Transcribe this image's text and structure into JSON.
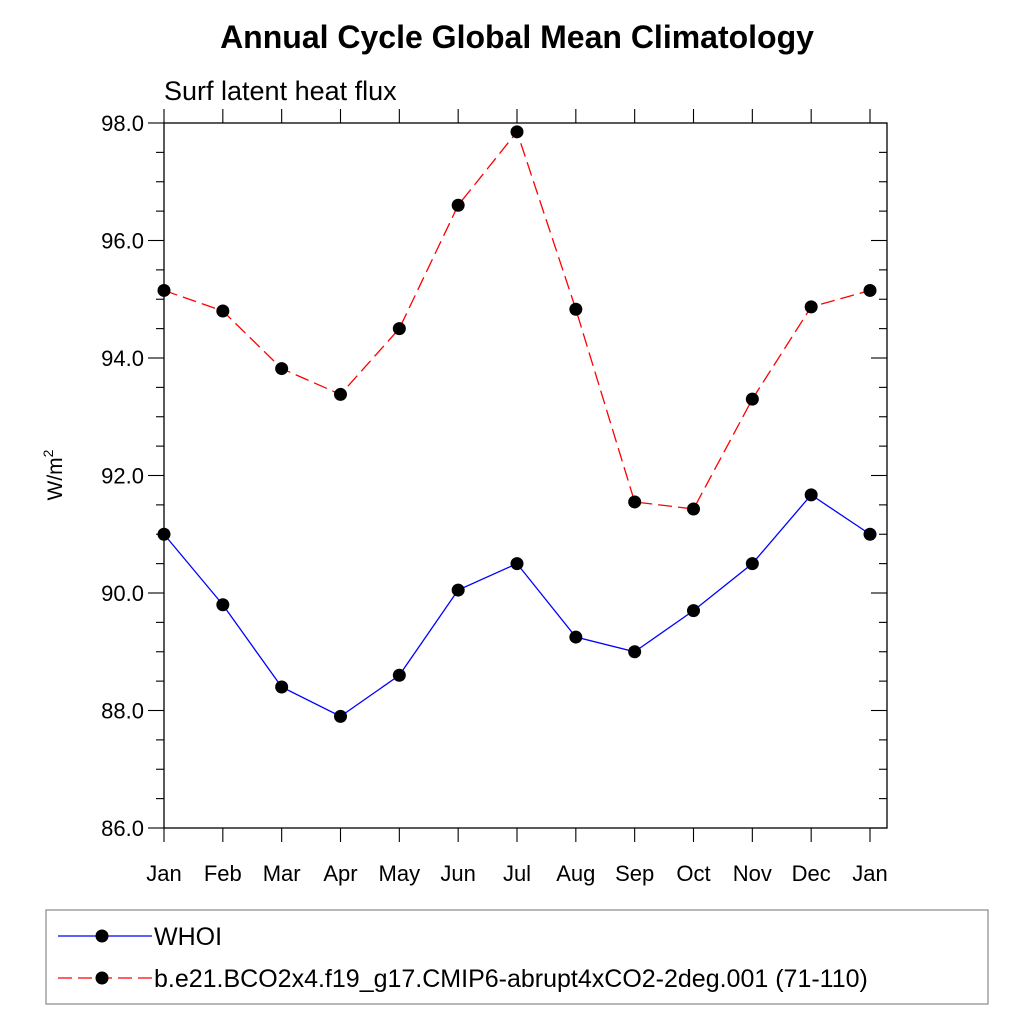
{
  "chart_data": {
    "type": "line",
    "title": "Annual Cycle Global Mean Climatology",
    "subtitle": "Surf latent heat flux",
    "xlabel": "",
    "ylabel": "W/m",
    "ylabel_superscript": "2",
    "categories": [
      "Jan",
      "Feb",
      "Mar",
      "Apr",
      "May",
      "Jun",
      "Jul",
      "Aug",
      "Sep",
      "Oct",
      "Nov",
      "Dec",
      "Jan"
    ],
    "ylim": [
      86.0,
      98.0
    ],
    "yticks": [
      "86.0",
      "88.0",
      "90.0",
      "92.0",
      "94.0",
      "96.0",
      "98.0"
    ],
    "grid": false,
    "legend_position": "bottom",
    "series": [
      {
        "name": "WHOI",
        "color": "#0000ff",
        "dash": "solid",
        "values": [
          91.0,
          89.8,
          88.4,
          87.9,
          88.6,
          90.05,
          90.5,
          89.25,
          89.0,
          89.7,
          90.5,
          91.67,
          91.0
        ]
      },
      {
        "name": "b.e21.BCO2x4.f19_g17.CMIP6-abrupt4xCO2-2deg.001 (71-110)",
        "color": "#ff0000",
        "dash": "dashed",
        "values": [
          95.15,
          94.8,
          93.82,
          93.38,
          94.5,
          96.6,
          97.85,
          94.83,
          91.55,
          91.43,
          93.3,
          94.87,
          95.15
        ]
      }
    ]
  }
}
